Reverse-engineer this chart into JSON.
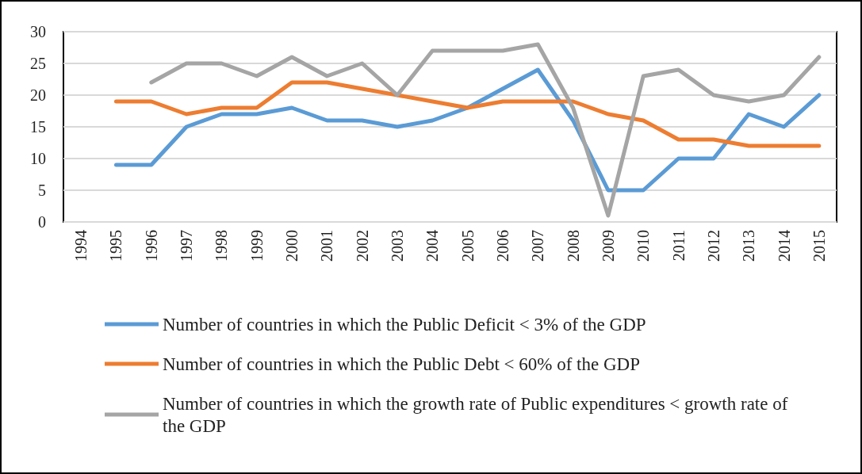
{
  "chart_data": {
    "type": "line",
    "categories": [
      "1994",
      "1995",
      "1996",
      "1997",
      "1998",
      "1999",
      "2000",
      "2001",
      "2002",
      "2003",
      "2004",
      "2005",
      "2006",
      "2007",
      "2008",
      "2009",
      "2010",
      "2011",
      "2012",
      "2013",
      "2014",
      "2015"
    ],
    "series": [
      {
        "name": "Number of countries in which the Public Deficit < 3% of the GDP",
        "color": "#5b9bd5",
        "values": [
          null,
          9,
          9,
          15,
          17,
          17,
          18,
          16,
          16,
          15,
          16,
          18,
          21,
          24,
          16,
          5,
          5,
          10,
          10,
          17,
          15,
          20
        ]
      },
      {
        "name": "Number of countries in which the Public Debt < 60% of the GDP",
        "color": "#ed7d31",
        "values": [
          null,
          19,
          19,
          17,
          18,
          18,
          22,
          22,
          21,
          20,
          19,
          18,
          19,
          19,
          19,
          17,
          16,
          13,
          13,
          12,
          12,
          12
        ]
      },
      {
        "name": "Number of countries in which the growth rate of Public expenditures < growth rate of the GDP",
        "color": "#a5a5a5",
        "values": [
          null,
          null,
          22,
          25,
          25,
          23,
          26,
          23,
          25,
          20,
          27,
          27,
          27,
          28,
          18,
          1,
          23,
          24,
          20,
          19,
          20,
          26
        ]
      }
    ],
    "ylim": [
      0,
      30
    ],
    "yticks": [
      0,
      5,
      10,
      15,
      20,
      25,
      30
    ],
    "grid": "y",
    "legend": "bottom",
    "marker": "none",
    "line_style": "solid"
  }
}
